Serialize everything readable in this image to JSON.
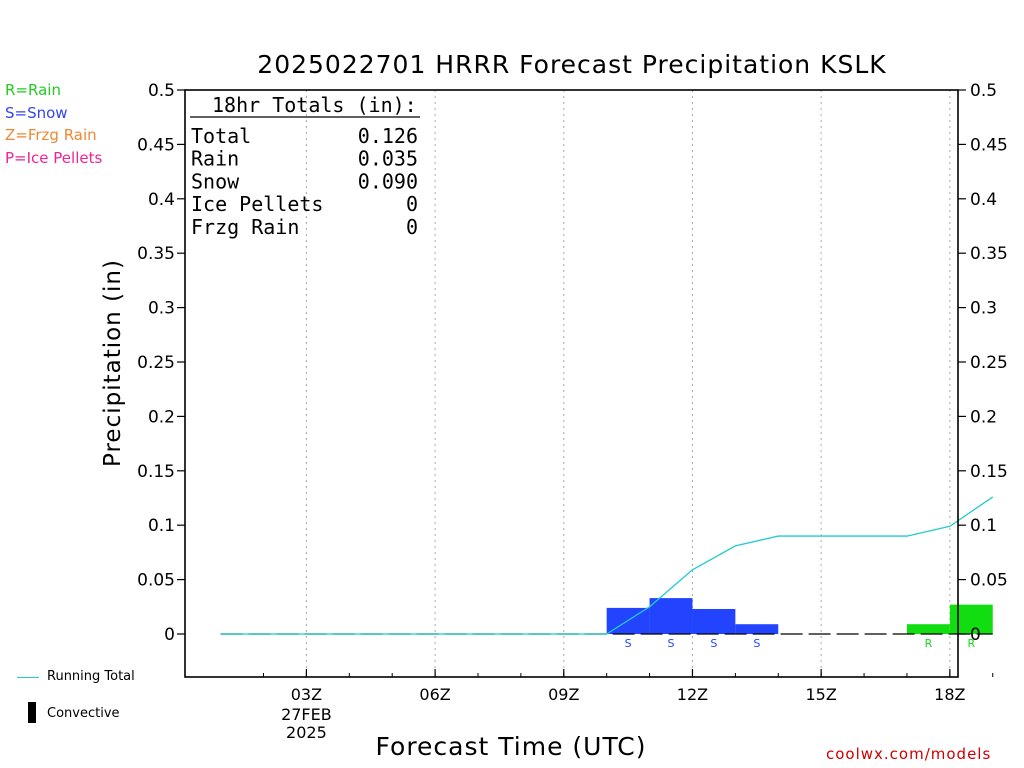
{
  "title": "2025022701 HRRR Forecast Precipitation KSLK",
  "precip_legend": [
    {
      "label": "R=Rain",
      "color": "#22cc22"
    },
    {
      "label": "S=Snow",
      "color": "#3344ee"
    },
    {
      "label": "Z=Frzg Rain",
      "color": "#ee8833"
    },
    {
      "label": "P=Ice Pellets",
      "color": "#ee2299"
    }
  ],
  "series_legend": {
    "running_total": "Running Total",
    "convective": "Convective"
  },
  "credit": "coolwx.com/models",
  "totals_box": {
    "heading": "18hr Totals (in):",
    "rows": [
      {
        "label": "Total",
        "value": "0.126"
      },
      {
        "label": "Rain",
        "value": "0.035"
      },
      {
        "label": "Snow",
        "value": "0.090"
      },
      {
        "label": "Ice Pellets",
        "value": "0"
      },
      {
        "label": "Frzg Rain",
        "value": "0"
      }
    ]
  },
  "colors": {
    "rain": "#11dd11",
    "snow": "#2244ff",
    "running_total": "#22cccc",
    "convective": "#000000"
  },
  "chart_data": {
    "type": "bar",
    "title": "2025022701 HRRR Forecast Precipitation KSLK",
    "xlabel": "Forecast Time (UTC)",
    "ylabel": "Precipitation (in)",
    "ylim": [
      0,
      0.5
    ],
    "xlim_hours": [
      1,
      19
    ],
    "yticks": [
      "0",
      "0.05",
      "0.1",
      "0.15",
      "0.2",
      "0.25",
      "0.3",
      "0.35",
      "0.4",
      "0.45",
      "0.5"
    ],
    "xticks": [
      {
        "hour": 3,
        "label": "03Z",
        "sublabels": [
          "27FEB",
          "2025"
        ]
      },
      {
        "hour": 6,
        "label": "06Z"
      },
      {
        "hour": 9,
        "label": "09Z"
      },
      {
        "hour": 12,
        "label": "12Z"
      },
      {
        "hour": 15,
        "label": "15Z"
      },
      {
        "hour": 18,
        "label": "18Z"
      }
    ],
    "grid": "vertical dotted at x ticks",
    "hours": [
      2,
      3,
      4,
      5,
      6,
      7,
      8,
      9,
      10,
      11,
      12,
      13,
      14,
      15,
      16,
      17,
      18,
      19
    ],
    "hourly_precip": [
      0,
      0,
      0,
      0,
      0,
      0,
      0,
      0,
      0,
      0.024,
      0.033,
      0.023,
      0.009,
      0,
      0,
      0,
      0.009,
      0.027
    ],
    "precip_type": [
      "",
      "",
      "",
      "",
      "",
      "",
      "",
      "",
      "",
      "S",
      "S",
      "S",
      "S",
      "",
      "",
      "",
      "R",
      "R"
    ],
    "running_total": {
      "name": "Running Total",
      "hours": [
        1,
        2,
        3,
        4,
        5,
        6,
        7,
        8,
        9,
        10,
        11,
        12,
        13,
        14,
        15,
        16,
        17,
        18,
        19
      ],
      "values": [
        0,
        0,
        0,
        0,
        0,
        0,
        0,
        0,
        0,
        0,
        0.025,
        0.059,
        0.081,
        0.09,
        0.09,
        0.09,
        0.09,
        0.099,
        0.126
      ]
    }
  }
}
